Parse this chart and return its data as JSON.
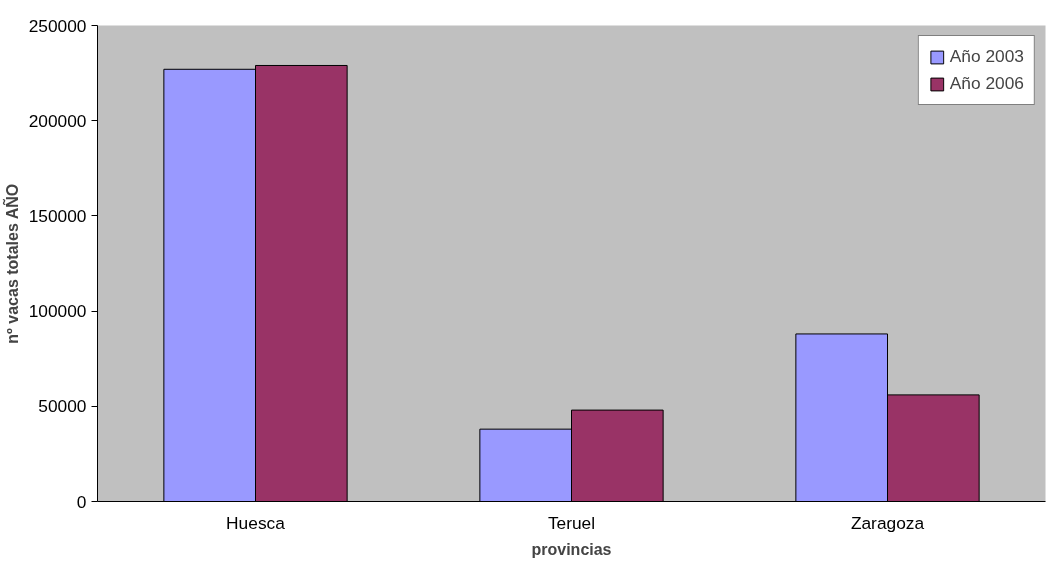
{
  "chart_data": {
    "type": "bar",
    "xlabel": "provincias",
    "ylabel": "nº vacas totales AÑO",
    "categories": [
      "Huesca",
      "Teruel",
      "Zaragoza"
    ],
    "series": [
      {
        "name": "Año 2003",
        "color": "#9999ff",
        "values": [
          227000,
          38000,
          88000
        ]
      },
      {
        "name": "Año 2006",
        "color": "#993366",
        "values": [
          229000,
          48000,
          56000
        ]
      }
    ],
    "ylim": [
      0,
      250000
    ],
    "yticks": [
      0,
      50000,
      100000,
      150000,
      200000,
      250000
    ],
    "grid": false,
    "legend": "top right"
  }
}
